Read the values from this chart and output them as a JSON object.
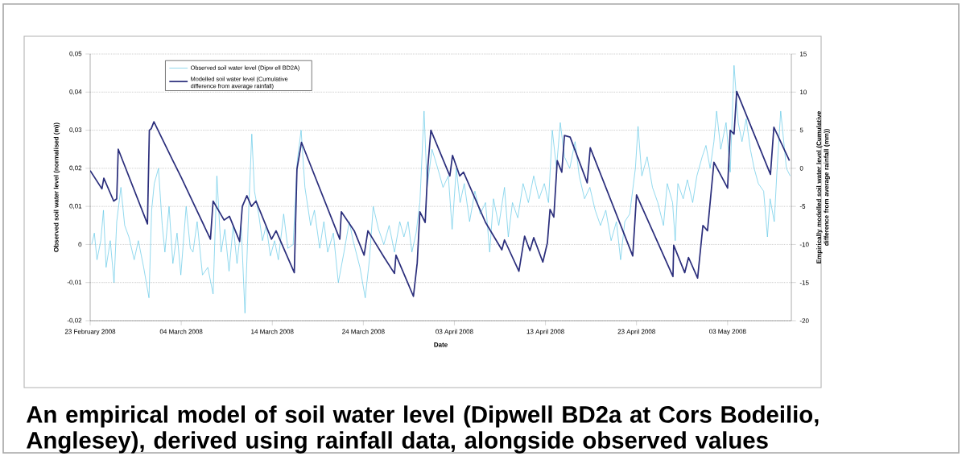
{
  "chart_data": {
    "type": "line",
    "title": "An empirical model of soil water level (Dipwell BD2a at Cors Bodeilio, Anglesey), derived using rainfall data, alongside observed values",
    "xlabel": "Date",
    "ylabel": "Observed soil water level (normalised (m))",
    "y2label": "Empirically modelled soil water level (Cumulative difference from average rainfall (mm))",
    "xlim": [
      "2008-02-23",
      "2008-05-10"
    ],
    "xticks": [
      {
        "value": "2008-02-23",
        "label": "23 February 2008"
      },
      {
        "value": "2008-03-04",
        "label": "04 March 2008"
      },
      {
        "value": "2008-03-14",
        "label": "14 March 2008"
      },
      {
        "value": "2008-03-24",
        "label": "24 March 2008"
      },
      {
        "value": "2008-04-03",
        "label": "03 April 2008"
      },
      {
        "value": "2008-04-13",
        "label": "13 April 2008"
      },
      {
        "value": "2008-04-23",
        "label": "23 April 2008"
      },
      {
        "value": "2008-05-03",
        "label": "03 May 2008"
      }
    ],
    "ylim": [
      -0.02,
      0.05
    ],
    "yticks": [
      {
        "value": -0.02,
        "label": "-0,02"
      },
      {
        "value": -0.01,
        "label": "-0,01"
      },
      0,
      {
        "value": 0.01,
        "label": "0,01"
      },
      {
        "value": 0.02,
        "label": "0,02"
      },
      {
        "value": 0.03,
        "label": "0,03"
      },
      {
        "value": 0.04,
        "label": "0,04"
      },
      {
        "value": 0.05,
        "label": "0,05"
      }
    ],
    "y2lim": [
      -20,
      15
    ],
    "y2ticks": [
      -20,
      -15,
      -10,
      -5,
      0,
      5,
      10,
      15
    ],
    "grid": "y",
    "legend": "top left",
    "marker": "none",
    "series": [
      {
        "name": "Observed soil water level (Dipw ell BD2A)",
        "color": "#5cc6e6",
        "x": [
          "2008-02-23T04:00",
          "2008-02-23T11:00",
          "2008-02-23T18:00",
          "2008-02-24T04:00",
          "2008-02-24T11:00",
          "2008-02-24T18:00",
          "2008-02-25T05:00",
          "2008-02-25T15:00",
          "2008-02-25T22:00",
          "2008-02-26T09:00",
          "2008-02-26T19:00",
          "2008-02-27T06:00",
          "2008-02-27T20:00",
          "2008-02-28T07:00",
          "2008-02-28T21:00",
          "2008-02-29T11:00",
          "2008-02-29T18:00",
          "2008-03-01T01:00",
          "2008-03-01T12:00",
          "2008-03-01T22:00",
          "2008-03-02T05:00",
          "2008-03-02T16:00",
          "2008-03-03T02:00",
          "2008-03-03T13:00",
          "2008-03-03T23:00",
          "2008-03-04T13:00",
          "2008-03-05T00:00",
          "2008-03-05T07:00",
          "2008-03-05T18:00",
          "2008-03-06T08:00",
          "2008-03-06T22:00",
          "2008-03-07T12:00",
          "2008-03-07T22:00",
          "2008-03-08T09:00",
          "2008-03-08T19:00",
          "2008-03-09T06:00",
          "2008-03-09T17:00",
          "2008-03-10T03:00",
          "2008-03-10T14:00",
          "2008-03-11T00:00",
          "2008-03-11T11:00",
          "2008-03-11T18:00",
          "2008-03-12T01:00",
          "2008-03-12T12:00",
          "2008-03-12T22:00",
          "2008-03-13T08:00",
          "2008-03-13T19:00",
          "2008-03-14T06:00",
          "2008-03-14T16:00",
          "2008-03-15T06:00",
          "2008-03-15T17:00",
          "2008-03-16T07:00",
          "2008-03-16T18:00",
          "2008-03-17T04:00",
          "2008-03-17T14:00",
          "2008-03-18T05:00",
          "2008-03-18T15:00",
          "2008-03-19T05:00",
          "2008-03-19T16:00",
          "2008-03-20T02:00",
          "2008-03-20T17:00",
          "2008-03-21T06:00",
          "2008-03-21T21:00",
          "2008-03-22T11:00",
          "2008-03-22T21:00",
          "2008-03-23T15:00",
          "2008-03-24T05:00",
          "2008-03-24T16:00",
          "2008-03-25T02:00",
          "2008-03-25T16:00",
          "2008-03-26T06:00",
          "2008-03-26T20:00",
          "2008-03-27T10:00",
          "2008-03-28T00:00",
          "2008-03-28T11:00",
          "2008-03-28T22:00",
          "2008-03-29T08:00",
          "2008-03-29T19:00",
          "2008-03-30T05:00",
          "2008-03-30T16:00",
          "2008-03-31T00:00",
          "2008-03-31T13:00",
          "2008-04-01T04:00",
          "2008-04-01T18:00",
          "2008-04-02T08:00",
          "2008-04-02T18:00",
          "2008-04-03T05:00",
          "2008-04-03T15:00",
          "2008-04-04T02:00",
          "2008-04-04T16:00",
          "2008-04-05T06:00",
          "2008-04-05T20:00",
          "2008-04-06T10:00",
          "2008-04-06T21:00",
          "2008-04-07T07:00",
          "2008-04-07T21:00",
          "2008-04-08T12:00",
          "2008-04-08T22:00",
          "2008-04-09T09:00",
          "2008-04-09T23:00",
          "2008-04-10T13:00",
          "2008-04-11T03:00",
          "2008-04-11T17:00",
          "2008-04-12T07:00",
          "2008-04-12T21:00",
          "2008-04-13T08:00",
          "2008-04-13T18:00",
          "2008-04-14T05:00",
          "2008-04-14T15:00",
          "2008-04-15T02:00",
          "2008-04-15T16:00",
          "2008-04-16T06:00",
          "2008-04-16T17:00",
          "2008-04-17T07:00",
          "2008-04-17T21:00",
          "2008-04-18T11:00",
          "2008-04-19T01:00",
          "2008-04-19T15:00",
          "2008-04-20T05:00",
          "2008-04-20T19:00",
          "2008-04-21T06:00",
          "2008-04-21T17:00",
          "2008-04-22T06:00",
          "2008-04-22T21:00",
          "2008-04-23T04:00",
          "2008-04-23T14:00",
          "2008-04-24T04:00",
          "2008-04-24T18:00",
          "2008-04-25T08:00",
          "2008-04-25T23:00",
          "2008-04-26T09:00",
          "2008-04-26T23:00",
          "2008-04-27T06:00",
          "2008-04-27T13:00",
          "2008-04-28T03:00",
          "2008-04-28T14:00",
          "2008-04-29T04:00",
          "2008-04-29T15:00",
          "2008-04-30T05:00",
          "2008-04-30T15:00",
          "2008-05-01T02:00",
          "2008-05-01T12:00",
          "2008-05-01T19:00",
          "2008-05-02T06:00",
          "2008-05-02T20:00",
          "2008-05-03T07:00",
          "2008-05-03T17:00",
          "2008-05-04T04:00",
          "2008-05-04T14:00",
          "2008-05-05T01:00",
          "2008-05-05T12:00",
          "2008-05-05T22:00",
          "2008-05-06T09:00",
          "2008-05-06T23:00",
          "2008-05-07T09:00",
          "2008-05-07T16:00",
          "2008-05-08T03:00",
          "2008-05-08T10:00",
          "2008-05-08T20:00",
          "2008-05-09T11:00",
          "2008-05-09T21:00"
        ],
        "values": [
          0,
          0.003,
          -0.004,
          0.001,
          0.009,
          -0.006,
          0.001,
          -0.01,
          0.006,
          0.015,
          0.005,
          0.002,
          -0.004,
          0.001,
          -0.006,
          -0.014,
          0.009,
          0.016,
          0.02,
          0.005,
          -0.002,
          0.01,
          -0.005,
          0.003,
          -0.008,
          0.01,
          -0.001,
          -0.002,
          0.006,
          -0.008,
          -0.006,
          -0.013,
          0.018,
          -0.002,
          0.004,
          -0.007,
          0.005,
          -0.005,
          0.005,
          -0.018,
          0.012,
          0.029,
          0.014,
          0.008,
          0.001,
          0.005,
          -0.003,
          0.001,
          -0.004,
          0.008,
          -0.001,
          0,
          0.022,
          0.03,
          0.015,
          0.005,
          0.009,
          -0.001,
          0.006,
          -0.002,
          0.003,
          -0.01,
          -0.002,
          0.006,
          0.001,
          -0.006,
          -0.014,
          -0.004,
          0.01,
          0.004,
          0,
          0.005,
          -0.002,
          0.006,
          0.002,
          0.006,
          -0.002,
          0.003,
          0.011,
          0.035,
          0.015,
          0.025,
          0.02,
          0.015,
          0.018,
          0.004,
          0.02,
          0.011,
          0.016,
          0.006,
          0.014,
          0.008,
          0.011,
          -0.002,
          0.012,
          0.005,
          0.015,
          0.002,
          0.011,
          0.007,
          0.016,
          0.011,
          0.018,
          0.012,
          0.016,
          0.011,
          0.03,
          0.02,
          0.032,
          0.023,
          0.02,
          0.027,
          0.018,
          0.012,
          0.015,
          0.009,
          0.005,
          0.009,
          0.001,
          0.006,
          -0.004,
          0.006,
          0.008,
          0.02,
          0.031,
          0.018,
          0.023,
          0.015,
          0.011,
          0.005,
          0.016,
          0.011,
          0.001,
          0.016,
          0.012,
          0.017,
          0.011,
          0.018,
          0.023,
          0.026,
          0.02,
          0.027,
          0.035,
          0.025,
          0.032,
          0.019,
          0.047,
          0.032,
          0.027,
          0.033,
          0.025,
          0.02,
          0.016,
          0.014,
          0.002,
          0.012,
          0.006,
          0.019,
          0.035,
          0.02,
          0.018
        ]
      },
      {
        "name": "Modelled soil water level (Cumulative difference from average rainfall)",
        "color": "#2c2f7c",
        "axis": "y2",
        "x": [
          "2008-02-23T00:00",
          "2008-02-24T07:00",
          "2008-02-24T12:00",
          "2008-02-25T14:00",
          "2008-02-25T22:00",
          "2008-02-26T02:00",
          "2008-02-29T07:00",
          "2008-02-29T12:00",
          "2008-02-29T17:00",
          "2008-03-01T00:00",
          "2008-03-03T02:00",
          "2008-03-04T00:00",
          "2008-03-07T05:00",
          "2008-03-07T12:00",
          "2008-03-08T17:00",
          "2008-03-09T07:00",
          "2008-03-10T10:00",
          "2008-03-10T17:00",
          "2008-03-11T05:00",
          "2008-03-11T17:00",
          "2008-03-12T05:00",
          "2008-03-13T22:00",
          "2008-03-14T10:00",
          "2008-03-16T10:00",
          "2008-03-16T17:00",
          "2008-03-17T05:00",
          "2008-03-21T10:00",
          "2008-03-21T14:00",
          "2008-03-23T00:00",
          "2008-03-24T02:00",
          "2008-03-24T12:00",
          "2008-03-26T07:00",
          "2008-03-27T10:00",
          "2008-03-27T14:00",
          "2008-03-29T12:00",
          "2008-03-29T22:00",
          "2008-03-30T05:00",
          "2008-03-30T19:00",
          "2008-03-31T02:00",
          "2008-03-31T10:00",
          "2008-04-02T12:00",
          "2008-04-02T19:00",
          "2008-04-03T14:00",
          "2008-04-04T00:00",
          "2008-04-06T10:00",
          "2008-04-08T05:00",
          "2008-04-08T12:00",
          "2008-04-10T02:00",
          "2008-04-10T17:00",
          "2008-04-11T07:00",
          "2008-04-11T17:00",
          "2008-04-12T17:00",
          "2008-04-13T05:00",
          "2008-04-13T12:00",
          "2008-04-13T22:00",
          "2008-04-14T07:00",
          "2008-04-14T19:00",
          "2008-04-15T02:00",
          "2008-04-15T17:00",
          "2008-04-17T14:00",
          "2008-04-17T22:00",
          "2008-04-22T14:00",
          "2008-04-23T00:00",
          "2008-04-27T00:00",
          "2008-04-27T02:00",
          "2008-04-28T07:00",
          "2008-04-28T17:00",
          "2008-04-29T17:00",
          "2008-04-30T07:00",
          "2008-04-30T19:00",
          "2008-05-01T12:00",
          "2008-05-03T00:00",
          "2008-05-03T07:00",
          "2008-05-03T17:00",
          "2008-05-04T00:00",
          "2008-05-07T17:00",
          "2008-05-08T02:00",
          "2008-05-09T19:00"
        ],
        "values": [
          -0.3,
          -2.7,
          -1.3,
          -4.3,
          -4.0,
          2.5,
          -7.3,
          5.0,
          5.2,
          6.1,
          1.0,
          -1.2,
          -9.3,
          -4.3,
          -6.8,
          -6.3,
          -9.6,
          -5.0,
          -3.6,
          -5.0,
          -4.3,
          -9.3,
          -8.2,
          -13.7,
          -0.1,
          3.4,
          -9.3,
          -5.7,
          -8.2,
          -11.4,
          -8.2,
          -11.7,
          -13.8,
          -11.4,
          -16.8,
          -12.4,
          -5.7,
          -7.1,
          0.2,
          5.0,
          -1.0,
          1.7,
          -1.0,
          -0.5,
          -7.1,
          -10.7,
          -9.4,
          -13.5,
          -8.9,
          -10.8,
          -9.1,
          -12.3,
          -9.8,
          -5.4,
          -6.4,
          1.0,
          -0.5,
          4.3,
          4.1,
          -1.9,
          2.7,
          -11.5,
          -3.5,
          -14.2,
          -10.1,
          -13.7,
          -11.7,
          -14.4,
          -7.5,
          -8.2,
          0.8,
          -2.6,
          5.0,
          4.5,
          10.1,
          -0.8,
          5.4,
          1.0
        ]
      }
    ]
  }
}
